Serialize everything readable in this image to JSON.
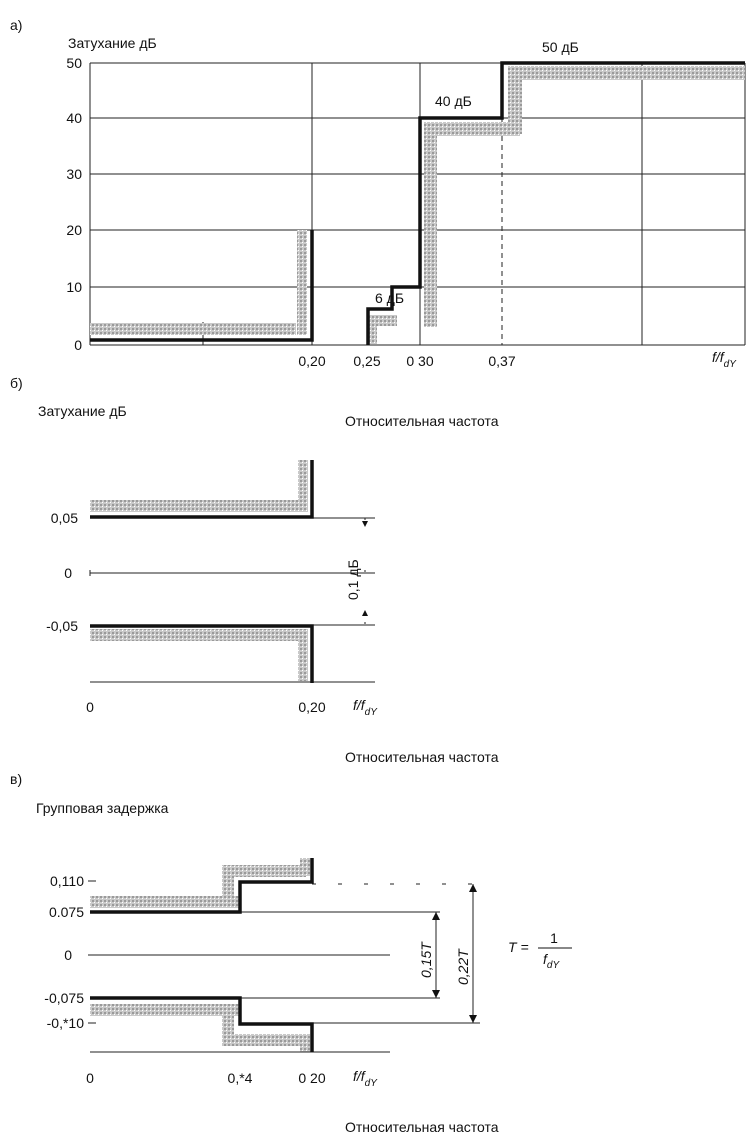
{
  "chart_data": [
    {
      "panel_label": "а)",
      "type": "line",
      "ylabel": "Затухание  дБ",
      "xlabel": "Относительная частота",
      "x_axis_symbol": "f/f",
      "x_axis_symbol_sub": "dY",
      "xlim": [
        0,
        0.5
      ],
      "ylim": [
        0,
        50
      ],
      "yticks": [
        "0",
        "10",
        "20",
        "30",
        "40",
        "50"
      ],
      "xticks": [
        "0,20",
        "0,25",
        "0 30",
        "0,37"
      ],
      "annotations": [
        "6 дБ",
        "40 дБ",
        "50 дБ"
      ],
      "series": [
        {
          "x": [
            0,
            0.2,
            0.2
          ],
          "y": [
            1,
            1,
            20
          ]
        },
        {
          "x": [
            0.25,
            0.25,
            0.275,
            0.275,
            0.3,
            0.3,
            0.34,
            0.34,
            0.5
          ],
          "y": [
            0,
            6,
            6,
            10,
            10,
            40,
            40,
            50,
            50
          ]
        }
      ]
    },
    {
      "panel_label": "б)",
      "type": "line",
      "ylabel": "Затухание  дБ",
      "xlabel": "Относительная частота",
      "x_axis_symbol": "f/f",
      "x_axis_symbol_sub": "dY",
      "yticks": [
        "0,05",
        "0",
        "-0,05"
      ],
      "xticks": [
        "0",
        "0,20"
      ],
      "annotations": [
        "0,1 дБ"
      ],
      "series": [
        {
          "x": [
            0,
            0.2,
            0.2
          ],
          "y": [
            0.05,
            0.05,
            0.1
          ]
        },
        {
          "x": [
            0,
            0.2,
            0.2
          ],
          "y": [
            -0.05,
            -0.05,
            -0.1
          ]
        }
      ]
    },
    {
      "panel_label": "в)",
      "type": "line",
      "ylabel": "Групповая задержка",
      "xlabel": "Относительная частота",
      "x_axis_symbol": "f/f",
      "x_axis_symbol_sub": "dY",
      "yticks": [
        "0,110",
        "0.075",
        "0",
        "-0,075",
        "-0,*10"
      ],
      "xticks": [
        "0",
        "0,*4",
        "0 20"
      ],
      "annotations": [
        "0,15T",
        "0,22T"
      ],
      "formula": {
        "lhs": "T =",
        "num": "1",
        "den": "f",
        "den_sub": "dY"
      },
      "series": [
        {
          "x": [
            0,
            0.14,
            0.14,
            0.2,
            0.2
          ],
          "y": [
            0.075,
            0.075,
            0.11,
            0.11,
            0.13
          ]
        },
        {
          "x": [
            0,
            0.14,
            0.14,
            0.2,
            0.2
          ],
          "y": [
            -0.075,
            -0.075,
            -0.11,
            -0.11,
            -0.13
          ]
        }
      ]
    }
  ],
  "colors": {
    "mask": "#111111",
    "tolerance": "#b4b4b4",
    "grid": "#222222"
  }
}
